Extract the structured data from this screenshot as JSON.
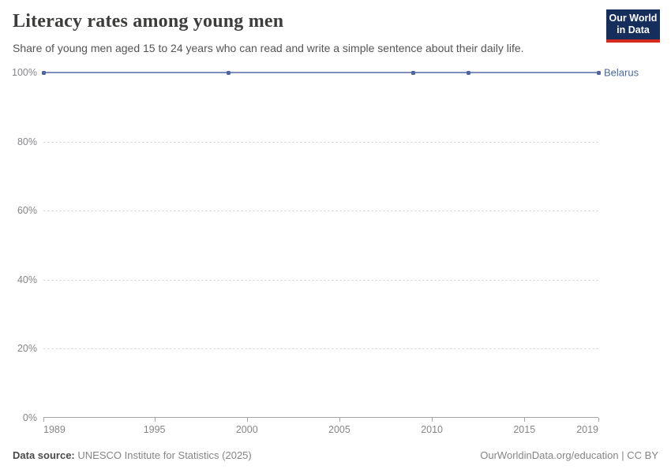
{
  "header": {
    "title": "Literacy rates among young men",
    "subtitle": "Share of young men aged 15 to 24 years who can read and write a simple sentence about their daily life.",
    "logo": {
      "line1": "Our World",
      "line2": "in Data"
    }
  },
  "chart_data": {
    "type": "line",
    "title": "Literacy rates among young men",
    "series": [
      {
        "name": "Belarus",
        "x": [
          1989,
          1999,
          2009,
          2012,
          2019
        ],
        "values": [
          100,
          100,
          100,
          100,
          100
        ]
      }
    ],
    "xlim": [
      1989,
      2019
    ],
    "ylim": [
      0,
      100
    ],
    "x_ticks": [
      1989,
      1995,
      2000,
      2005,
      2010,
      2015,
      2019
    ],
    "x_tick_labels": [
      "1989",
      "1995",
      "2000",
      "2005",
      "2010",
      "2015",
      "2019"
    ],
    "y_ticks": [
      0,
      20,
      40,
      60,
      80,
      100
    ],
    "y_tick_labels": [
      "0%",
      "20%",
      "40%",
      "60%",
      "80%",
      "100%"
    ],
    "grid": "horizontal-dashed",
    "legend_position": "end-of-line"
  },
  "colors": {
    "line": "#7D8FBA",
    "marker": "#4C669F",
    "entity_label": "#4C6A9C",
    "logo_background": "#152E5C",
    "logo_red": "#D4291F",
    "title_text": "#3C3C3B",
    "axis_text": "#848688",
    "gridline": "#DCDCDC"
  },
  "footer": {
    "source_label": "Data source:",
    "source_text": "UNESCO Institute for Statistics (2025)",
    "right_link": "OurWorldinData.org/education",
    "right_divider": "|",
    "right_license": "CC BY"
  }
}
